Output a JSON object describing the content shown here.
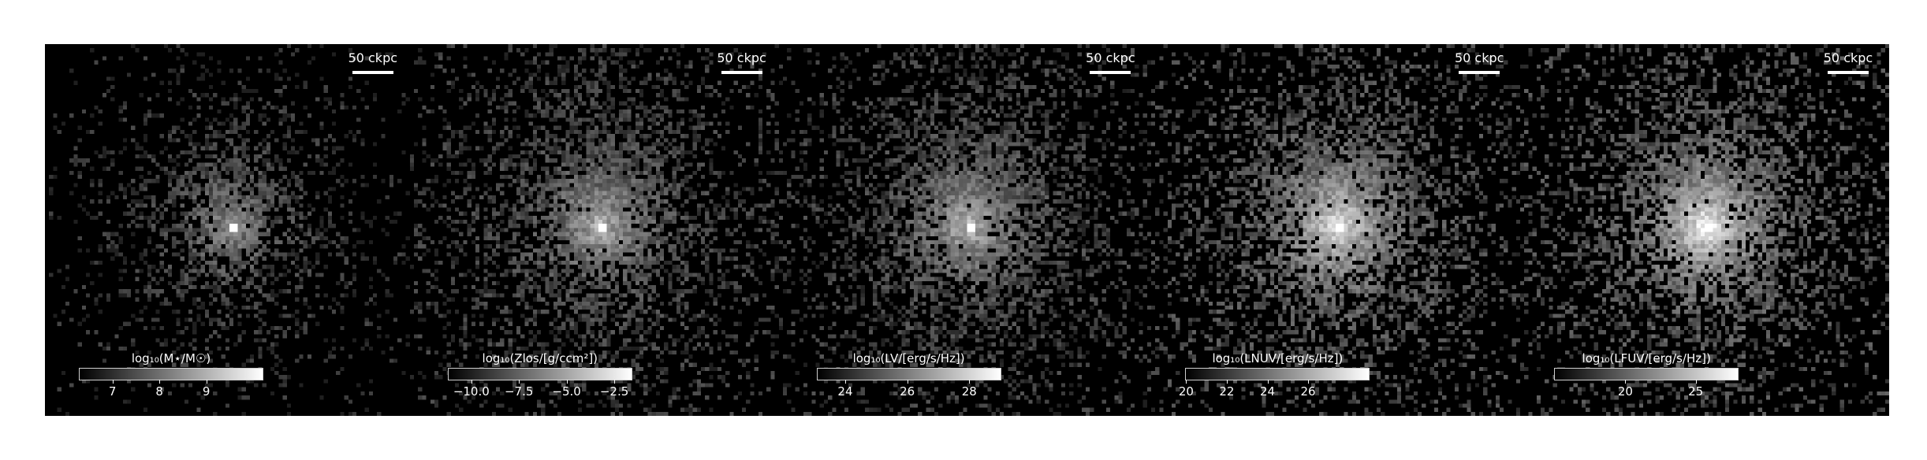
{
  "panels": [
    {
      "id": "stellar-mass",
      "scalebar_label": "50 ckpc",
      "colorbar_label": "log₁₀(M⋆/M☉)",
      "colorbar_range": [
        6.3,
        10.2
      ],
      "ticks": [
        "7",
        "8",
        "9"
      ],
      "brightness": 0.55,
      "spread": 0.55,
      "seed": 11
    },
    {
      "id": "metallicity",
      "scalebar_label": "50 ckpc",
      "colorbar_label": "log₁₀(Zlos/[g/ccm²])",
      "colorbar_range": [
        -11.2,
        -1.6
      ],
      "ticks": [
        "−10.0",
        "−7.5",
        "−5.0",
        "−2.5"
      ],
      "brightness": 0.7,
      "spread": 1.0,
      "seed": 23
    },
    {
      "id": "v-band",
      "scalebar_label": "50 ckpc",
      "colorbar_label": "log₁₀(LV/[erg/s/Hz])",
      "colorbar_range": [
        23.1,
        29.0
      ],
      "ticks": [
        "24",
        "26",
        "28"
      ],
      "brightness": 0.72,
      "spread": 1.0,
      "seed": 37
    },
    {
      "id": "nuv",
      "scalebar_label": "50 ckpc",
      "colorbar_label": "log₁₀(LNUV/[erg/s/Hz])",
      "colorbar_range": [
        20.0,
        29.0
      ],
      "ticks": [
        "20",
        "22",
        "24",
        "26"
      ],
      "brightness": 0.92,
      "spread": 1.0,
      "seed": 51
    },
    {
      "id": "fuv",
      "scalebar_label": "50 ckpc",
      "colorbar_label": "log₁₀(LFUV/[erg/s/Hz])",
      "colorbar_range": [
        15.0,
        28.0
      ],
      "ticks": [
        "20",
        "25"
      ],
      "brightness": 0.97,
      "spread": 1.0,
      "seed": 67
    }
  ]
}
